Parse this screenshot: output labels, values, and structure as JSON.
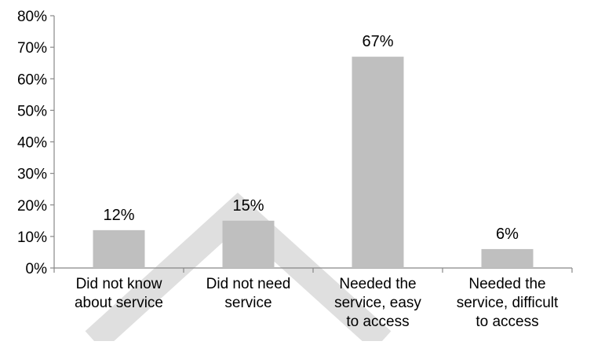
{
  "chart_data": {
    "type": "bar",
    "title": "",
    "xlabel": "",
    "ylabel": "",
    "ylim": [
      0,
      80
    ],
    "yticks": [
      "0%",
      "10%",
      "20%",
      "30%",
      "40%",
      "50%",
      "60%",
      "70%",
      "80%"
    ],
    "categories": [
      [
        "Did not know",
        "about service"
      ],
      [
        "Did not need",
        "service"
      ],
      [
        "Needed the",
        "service, easy",
        "to access"
      ],
      [
        "Needed the",
        "service, difficult",
        "to access"
      ]
    ],
    "values": [
      12,
      15,
      67,
      6
    ],
    "data_labels": [
      "12%",
      "15%",
      "67%",
      "6%"
    ],
    "grid": false,
    "legend": "none",
    "colors": {
      "bar": "#bfbfbf",
      "axis": "#888888",
      "watermark": "#d9d9d9"
    }
  }
}
